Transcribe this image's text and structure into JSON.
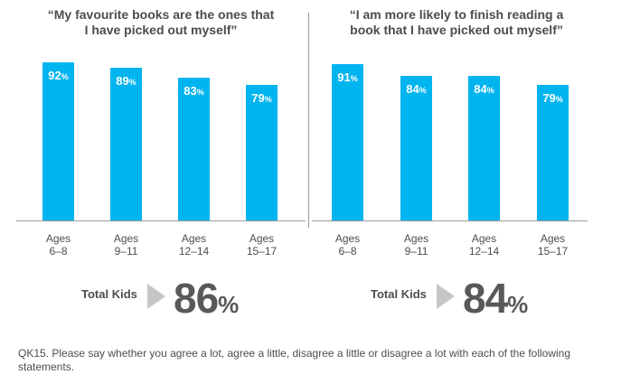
{
  "chart_data": [
    {
      "type": "bar",
      "title": "“My favourite books are the ones that I have picked out myself”",
      "title_lines": [
        "“My favourite books are the ones that",
        "I have picked out myself”"
      ],
      "categories": [
        "Ages 6–8",
        "Ages 9–11",
        "Ages 12–14",
        "Ages 15–17"
      ],
      "category_lines": [
        [
          "Ages",
          "6–8"
        ],
        [
          "Ages",
          "9–11"
        ],
        [
          "Ages",
          "12–14"
        ],
        [
          "Ages",
          "15–17"
        ]
      ],
      "values": [
        92,
        89,
        83,
        79
      ],
      "value_suffix": "%",
      "ylim": [
        0,
        100
      ],
      "total_label": "Total Kids",
      "total_value": 86
    },
    {
      "type": "bar",
      "title": "“I am more likely to finish reading a book that I have picked out myself”",
      "title_lines": [
        "“I am more likely to finish reading a",
        "book that I have picked out myself”"
      ],
      "categories": [
        "Ages 6–8",
        "Ages 9–11",
        "Ages 12–14",
        "Ages 15–17"
      ],
      "category_lines": [
        [
          "Ages",
          "6–8"
        ],
        [
          "Ages",
          "9–11"
        ],
        [
          "Ages",
          "12–14"
        ],
        [
          "Ages",
          "15–17"
        ]
      ],
      "values": [
        91,
        84,
        84,
        79
      ],
      "value_suffix": "%",
      "ylim": [
        0,
        100
      ],
      "total_label": "Total Kids",
      "total_value": 84
    }
  ],
  "footnote": "QK15. Please say whether you agree a lot, agree a little, disagree a little or disagree a lot with each of the following statements.",
  "colors": {
    "bar": "#00b4ef",
    "text": "#4d4d4f",
    "arrow": "#c6c6c6",
    "axis": "#9b9b9b"
  }
}
